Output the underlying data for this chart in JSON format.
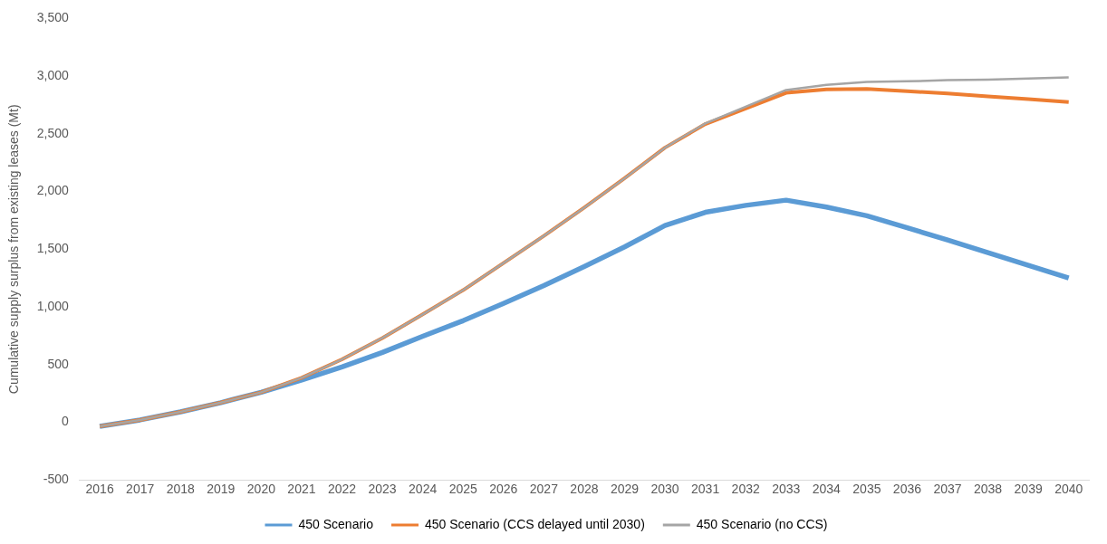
{
  "chart_data": {
    "type": "line",
    "ylabel": "Cumulative supply surplus from existing leases (Mt)",
    "categories": [
      "2016",
      "2017",
      "2018",
      "2019",
      "2020",
      "2021",
      "2022",
      "2023",
      "2024",
      "2025",
      "2026",
      "2027",
      "2028",
      "2029",
      "2030",
      "2031",
      "2032",
      "2033",
      "2034",
      "2035",
      "2036",
      "2037",
      "2038",
      "2039",
      "2040"
    ],
    "series": [
      {
        "name": "450 Scenario",
        "color": "#5b9bd5",
        "values": [
          -35,
          20,
          90,
          170,
          260,
          365,
          480,
          605,
          745,
          880,
          1030,
          1185,
          1350,
          1520,
          1705,
          1820,
          1880,
          1925,
          1865,
          1790,
          1685,
          1580,
          1470,
          1360,
          1250
        ]
      },
      {
        "name": "450 Scenario (CCS delayed until 2030)",
        "color": "#ed7d31",
        "values": [
          -35,
          20,
          90,
          170,
          260,
          385,
          545,
          730,
          935,
          1145,
          1380,
          1615,
          1860,
          2115,
          2380,
          2585,
          2720,
          2855,
          2885,
          2890,
          2870,
          2850,
          2825,
          2800,
          2775
        ]
      },
      {
        "name": "450 Scenario (no CCS)",
        "color": "#a5a5a5",
        "values": [
          -35,
          20,
          90,
          170,
          260,
          385,
          545,
          730,
          935,
          1145,
          1380,
          1615,
          1860,
          2115,
          2380,
          2590,
          2735,
          2880,
          2925,
          2950,
          2955,
          2965,
          2970,
          2980,
          2990
        ]
      }
    ],
    "ylim": [
      -500,
      3500
    ],
    "yticks": [
      {
        "value": -500,
        "label": "-500"
      },
      0,
      500,
      {
        "value": 1000,
        "label": "1,000"
      },
      {
        "value": 1500,
        "label": "1,500"
      },
      {
        "value": 2000,
        "label": "2,000"
      },
      {
        "value": 2500,
        "label": "2,500"
      },
      {
        "value": 3000,
        "label": "3,000"
      },
      {
        "value": 3500,
        "label": "3,500"
      }
    ],
    "grid": false,
    "legend": "bottom",
    "marker": "none",
    "line_style": "solid"
  }
}
